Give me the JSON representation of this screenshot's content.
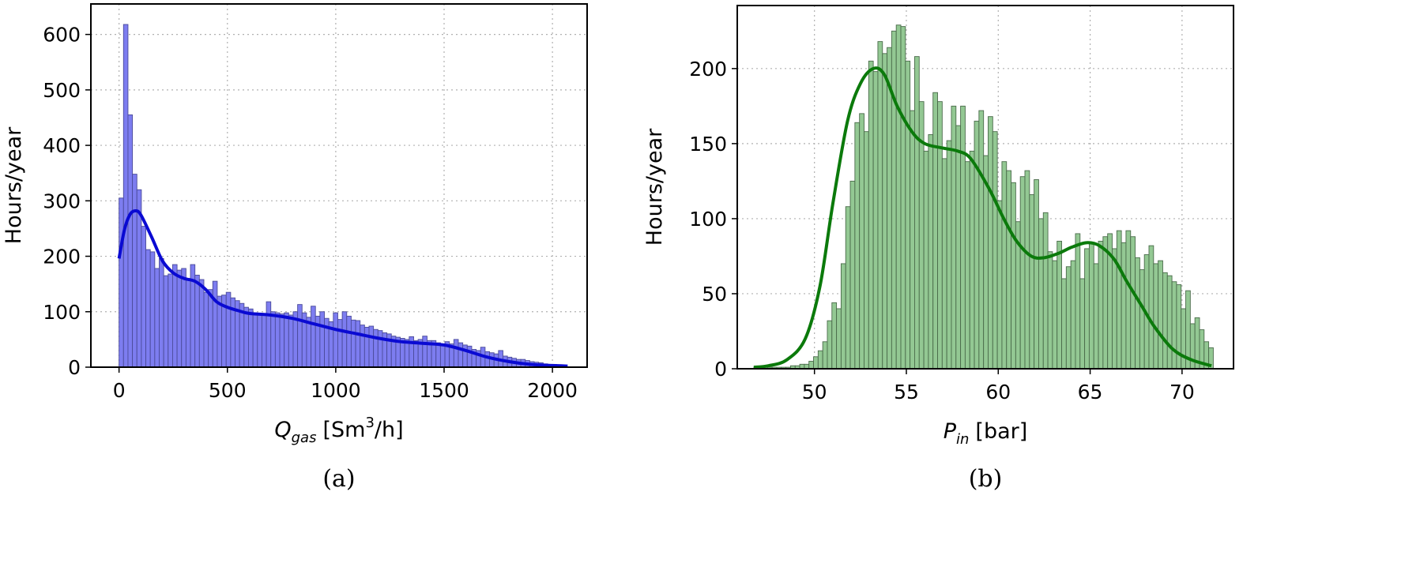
{
  "chart_data": [
    {
      "type": "bar",
      "caption": "(a)",
      "xlabel": {
        "main": "Q",
        "sub": "gas",
        "unit_pre": "[Sm",
        "unit_sup": "3",
        "unit_post": "/h]"
      },
      "ylabel": "Hours/year",
      "xlim": [
        -130,
        2160
      ],
      "ylim": [
        0,
        655
      ],
      "xticks": [
        0,
        500,
        1000,
        1500,
        2000
      ],
      "yticks": [
        0,
        100,
        200,
        300,
        400,
        500,
        600
      ],
      "grid": true,
      "bar_color": "#7d7df0",
      "bar_edge": "#4b4b9a",
      "line_color": "#0a0ad2",
      "bins": {
        "start": 0,
        "width": 20.6
      },
      "values": [
        305,
        618,
        455,
        348,
        320,
        254,
        212,
        208,
        178,
        196,
        165,
        168,
        185,
        175,
        178,
        160,
        185,
        166,
        158,
        135,
        140,
        155,
        128,
        130,
        135,
        125,
        120,
        115,
        108,
        105,
        98,
        95,
        95,
        118,
        100,
        98,
        96,
        98,
        94,
        100,
        113,
        98,
        90,
        110,
        92,
        100,
        88,
        82,
        98,
        86,
        100,
        92,
        85,
        84,
        76,
        72,
        74,
        68,
        66,
        62,
        60,
        56,
        54,
        52,
        50,
        55,
        48,
        50,
        56,
        48,
        48,
        44,
        42,
        46,
        42,
        50,
        44,
        40,
        38,
        32,
        30,
        36,
        28,
        26,
        24,
        30,
        20,
        18,
        16,
        14,
        14,
        12,
        10,
        9,
        8,
        6,
        5,
        5,
        4,
        4
      ],
      "kde": {
        "x": [
          0,
          25,
          50,
          75,
          100,
          150,
          200,
          250,
          300,
          350,
          400,
          450,
          500,
          550,
          600,
          700,
          800,
          900,
          1000,
          1100,
          1200,
          1300,
          1400,
          1500,
          1600,
          1700,
          1800,
          1900,
          2000,
          2070
        ],
        "y": [
          196,
          248,
          275,
          282,
          275,
          235,
          192,
          170,
          160,
          155,
          140,
          118,
          108,
          102,
          97,
          94,
          88,
          78,
          68,
          60,
          52,
          46,
          43,
          40,
          30,
          18,
          10,
          5,
          3,
          2
        ]
      }
    },
    {
      "type": "bar",
      "caption": "(b)",
      "xlabel": {
        "main": "P",
        "sub": "in",
        "unit_pre": "[bar]",
        "unit_sup": "",
        "unit_post": ""
      },
      "ylabel": "Hours/year",
      "xlim": [
        45.8,
        72.8
      ],
      "ylim": [
        0,
        242
      ],
      "xticks": [
        50,
        55,
        60,
        65,
        70
      ],
      "yticks": [
        0,
        50,
        100,
        150,
        200
      ],
      "grid": true,
      "bar_color": "#93c893",
      "bar_edge": "#4a6b4a",
      "line_color": "#0b7a0b",
      "bins": {
        "start": 46.7,
        "width": 0.25
      },
      "values": [
        1,
        1,
        1,
        1,
        1,
        1,
        1,
        1,
        2,
        2,
        3,
        3,
        5,
        8,
        12,
        18,
        32,
        44,
        40,
        70,
        108,
        125,
        164,
        170,
        158,
        205,
        198,
        218,
        210,
        214,
        225,
        229,
        228,
        205,
        172,
        208,
        178,
        145,
        156,
        184,
        178,
        140,
        152,
        175,
        162,
        175,
        138,
        145,
        165,
        172,
        142,
        168,
        158,
        112,
        138,
        132,
        124,
        98,
        128,
        132,
        116,
        126,
        100,
        104,
        78,
        72,
        85,
        60,
        68,
        72,
        90,
        60,
        80,
        84,
        70,
        85,
        88,
        90,
        80,
        92,
        84,
        92,
        88,
        74,
        66,
        76,
        82,
        70,
        72,
        64,
        62,
        58,
        56,
        40,
        52,
        30,
        34,
        26,
        18,
        14
      ],
      "kde": {
        "x": [
          46.7,
          47.5,
          48.5,
          49.5,
          50.3,
          51,
          51.8,
          52.5,
          53.2,
          53.8,
          54.5,
          55.3,
          56,
          57,
          57.8,
          58.5,
          59.5,
          60.3,
          61,
          61.8,
          62.5,
          63.3,
          64,
          64.8,
          65.5,
          66.3,
          67,
          67.8,
          68.5,
          69.5,
          70.5,
          71.6
        ],
        "y": [
          1,
          2,
          6,
          20,
          55,
          110,
          165,
          190,
          200,
          196,
          175,
          158,
          150,
          147,
          145,
          140,
          120,
          100,
          85,
          75,
          74,
          77,
          81,
          84,
          82,
          73,
          58,
          42,
          28,
          13,
          6,
          2
        ]
      }
    }
  ]
}
